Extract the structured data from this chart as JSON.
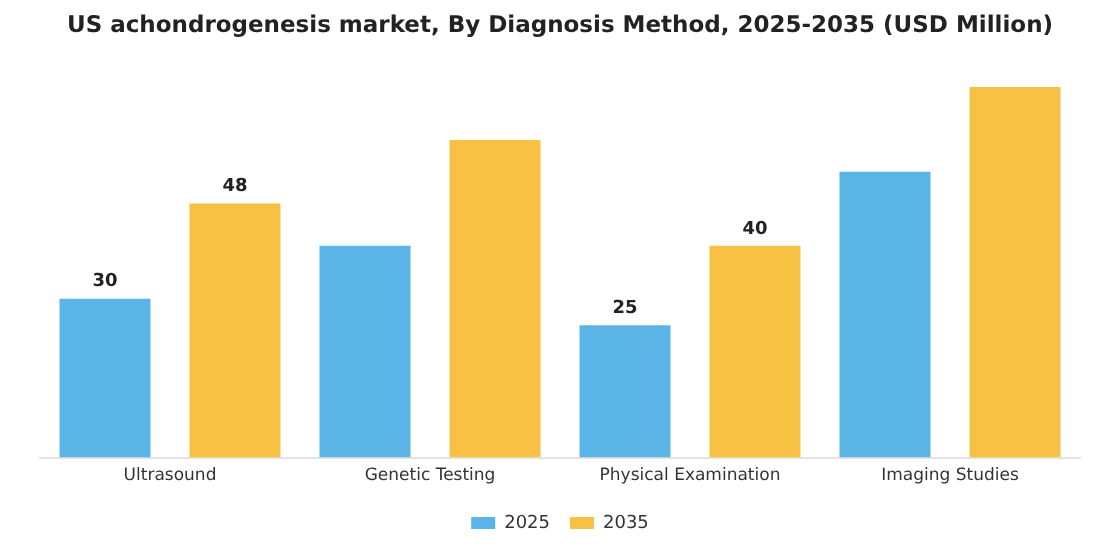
{
  "chart_data": {
    "type": "bar",
    "title": "US achondrogenesis market, By Diagnosis Method, 2025-2035 (USD Million)",
    "categories": [
      "Ultrasound",
      "Genetic Testing",
      "Physical Examination",
      "Imaging Studies"
    ],
    "series": [
      {
        "name": "2025",
        "color": "#5ab4e5",
        "values": [
          30,
          40,
          25,
          54
        ],
        "value_labels": [
          "30",
          null,
          "25",
          null
        ]
      },
      {
        "name": "2035",
        "color": "#f7c244",
        "values": [
          48,
          60,
          40,
          70
        ],
        "value_labels": [
          "48",
          null,
          "40",
          null
        ]
      }
    ],
    "grid": false,
    "legend": "bottom"
  }
}
